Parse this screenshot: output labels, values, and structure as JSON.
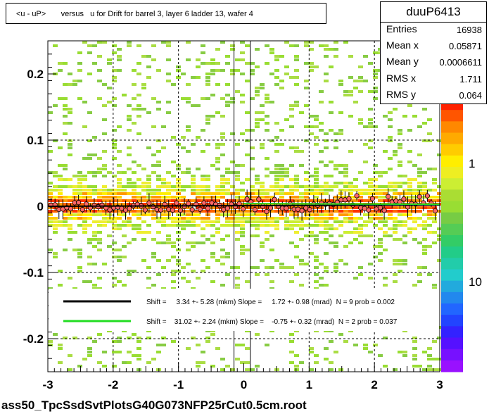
{
  "title": "<u - uP>       versus   u for Drift for barrel 3, layer 6 ladder 13, wafer 4",
  "stats": {
    "name": "duuP6413",
    "rows": [
      {
        "label": "Entries",
        "value": "16938"
      },
      {
        "label": "Mean x",
        "value": "0.05871"
      },
      {
        "label": "Mean y",
        "value": "0.0006611"
      },
      {
        "label": "RMS x",
        "value": "1.711"
      },
      {
        "label": "RMS y",
        "value": "0.064"
      }
    ]
  },
  "filename": "ass50_TpcSsdSvtPlotsG40G073NFP25rCut0.5cm.root",
  "colors": {
    "fit_black": "#000000",
    "fit_green": "#22dd22",
    "profile_marker": "#ff6666"
  },
  "chart_data": {
    "type": "heatmap",
    "xlim": [
      -3,
      3
    ],
    "ylim": [
      -0.25,
      0.25
    ],
    "x_ticks": [
      "-3",
      "-2",
      "-1",
      "0",
      "1",
      "2",
      "3"
    ],
    "y_ticks": [
      "-0.2",
      "-0.1",
      "0",
      "0.1",
      "0.2"
    ],
    "y_tick_values": [
      -0.2,
      -0.1,
      0,
      0.1,
      0.2
    ],
    "colorbar_labels": [
      "1",
      "10"
    ],
    "colorbar_top_partial": "0",
    "fits": [
      {
        "text": "Shift =     3.34 +- 5.28 (mkm) Slope =     1.72 +- 0.98 (mrad)  N = 9 prob = 0.002",
        "color": "#000000",
        "x_range": [
          -3,
          3
        ],
        "y_start": 0.0,
        "y_end": 0.002
      },
      {
        "text": "Shift =    31.02 +- 2.24 (mkm) Slope =    -0.75 +- 0.32 (mrad)  N = 2 prob = 0.037",
        "color": "#22dd22",
        "x_range": [
          0,
          3
        ],
        "y_start": 0.004,
        "y_end": 0.003
      }
    ],
    "dashed_x": [
      -2,
      -1,
      1,
      2
    ],
    "solid_x": [
      -0.15,
      0.1
    ],
    "dashed_y": [
      0.1,
      -0.1,
      -0.2
    ]
  }
}
